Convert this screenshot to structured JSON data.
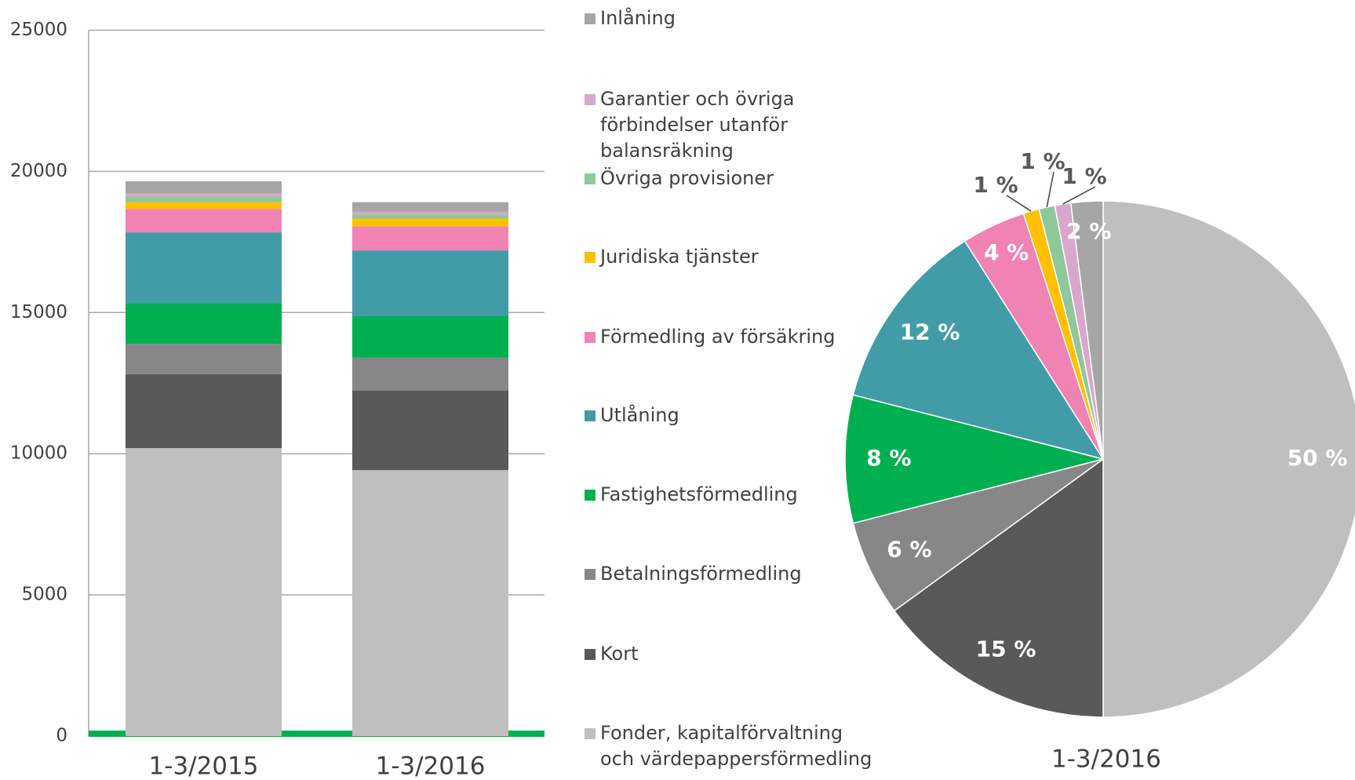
{
  "chart_data": [
    {
      "type": "bar",
      "stacked": true,
      "grid": true,
      "categories": [
        "1-3/2015",
        "1-3/2016"
      ],
      "ylim": [
        0,
        25000
      ],
      "yticks": [
        0,
        5000,
        10000,
        15000,
        20000,
        25000
      ],
      "series": [
        {
          "name": "Fonder, kapitalförvaltning\noch värdepappersförmedling",
          "color": "#bfbfbf",
          "values": [
            10200,
            9420
          ]
        },
        {
          "name": "Kort",
          "color": "#595959",
          "values": [
            2620,
            2820
          ]
        },
        {
          "name": "Betalningsförmedling",
          "color": "#878787",
          "values": [
            1070,
            1160
          ]
        },
        {
          "name": "Fastighetsförmedling",
          "color": "#00b050",
          "values": [
            1440,
            1470
          ]
        },
        {
          "name": "Utlåning",
          "color": "#419ca8",
          "values": [
            2510,
            2330
          ]
        },
        {
          "name": "Förmedling av försäkring",
          "color": "#f082b4",
          "values": [
            830,
            850
          ]
        },
        {
          "name": "Juridiska tjänster",
          "color": "#ffc000",
          "values": [
            240,
            280
          ]
        },
        {
          "name": "Övriga provisioner",
          "color": "#8fc89a",
          "values": [
            210,
            150
          ]
        },
        {
          "name": "Garantier och övriga\nförbindelser utanför\nbalansräkning",
          "color": "#d9a6cc",
          "values": [
            100,
            90
          ]
        },
        {
          "name": "Inlåning",
          "color": "#a6a6a6",
          "values": [
            430,
            340
          ]
        }
      ]
    },
    {
      "type": "pie",
      "label": "1-3/2016",
      "values": [
        50,
        15,
        6,
        8,
        12,
        4,
        1,
        1,
        1,
        2
      ],
      "value_labels": [
        "50 %",
        "15 %",
        "6 %",
        "8 %",
        "12 %",
        "4 %",
        "1 %",
        "1 %",
        "1 %",
        "2 %"
      ],
      "colors": [
        "#bfbfbf",
        "#595959",
        "#878787",
        "#00b050",
        "#419ca8",
        "#f082b4",
        "#ffc000",
        "#8fc89a",
        "#d9a6cc",
        "#a6a6a6"
      ]
    }
  ]
}
